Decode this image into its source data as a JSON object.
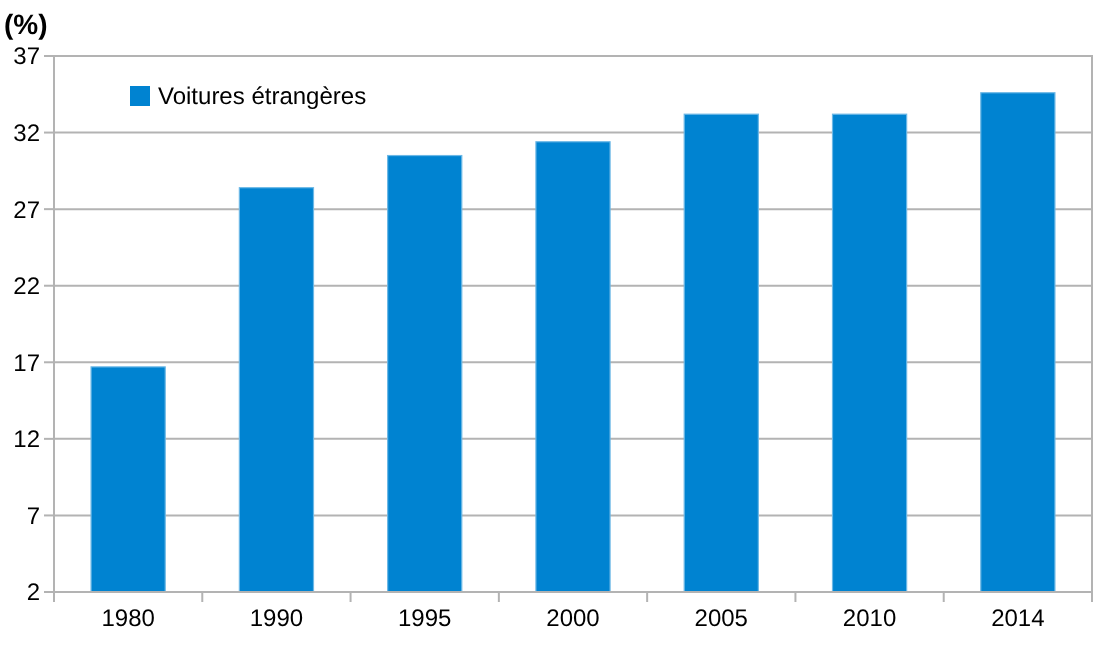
{
  "chart_data": {
    "type": "bar",
    "ylabel": "(%)",
    "categories": [
      "1980",
      "1990",
      "1995",
      "2000",
      "2005",
      "2010",
      "2014"
    ],
    "series": [
      {
        "name": "Voitures étrangères",
        "color": "#0083d1",
        "values": [
          16.7,
          28.4,
          30.5,
          31.4,
          33.2,
          33.2,
          34.6
        ]
      }
    ],
    "ylim": [
      2,
      37
    ],
    "yticks": [
      2,
      7,
      12,
      17,
      22,
      27,
      32,
      37
    ],
    "grid": "y",
    "legend": "top left"
  }
}
